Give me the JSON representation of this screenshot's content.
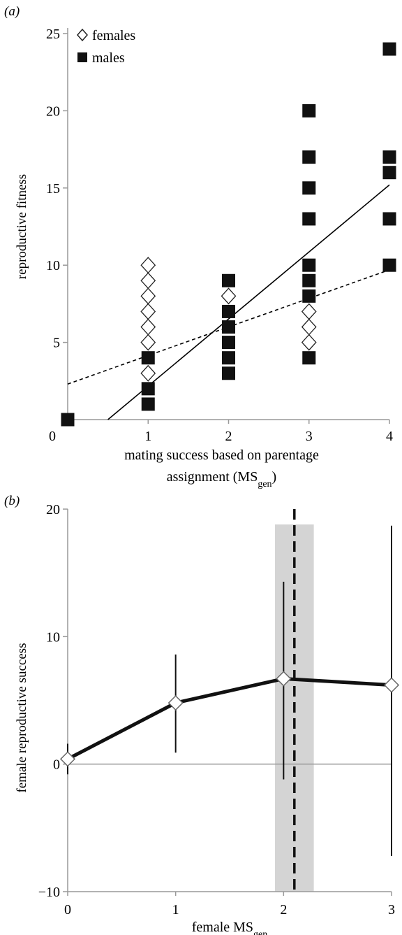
{
  "chart_data": [
    {
      "panel_label": "(a)",
      "type": "scatter",
      "xlabel_line1": "mating success based on parentage",
      "xlabel_line2_pre": "assignment (MS",
      "xlabel_line2_sub": "gen",
      "xlabel_line2_post": ")",
      "ylabel": "reproductive fitness",
      "xlim": [
        0,
        4
      ],
      "ylim": [
        0,
        25
      ],
      "xticks": [
        0,
        1,
        2,
        3,
        4
      ],
      "yticks": [
        5,
        10,
        15,
        20,
        25
      ],
      "legend": [
        "females",
        "males"
      ],
      "series": [
        {
          "name": "females",
          "marker": "open-diamond",
          "points": [
            [
              1,
              10
            ],
            [
              1,
              9
            ],
            [
              1,
              8
            ],
            [
              1,
              7
            ],
            [
              1,
              6
            ],
            [
              1,
              5
            ],
            [
              1,
              3
            ],
            [
              2,
              8
            ],
            [
              3,
              7
            ],
            [
              3,
              6
            ],
            [
              3,
              5
            ]
          ]
        },
        {
          "name": "males",
          "marker": "filled-square",
          "points": [
            [
              0,
              0
            ],
            [
              1,
              4
            ],
            [
              1,
              2
            ],
            [
              1,
              1
            ],
            [
              2,
              9
            ],
            [
              2,
              7
            ],
            [
              2,
              6
            ],
            [
              2,
              5
            ],
            [
              2,
              4
            ],
            [
              2,
              3
            ],
            [
              3,
              20
            ],
            [
              3,
              17
            ],
            [
              3,
              15
            ],
            [
              3,
              13
            ],
            [
              3,
              10
            ],
            [
              3,
              9
            ],
            [
              3,
              8
            ],
            [
              3,
              4
            ],
            [
              4,
              24
            ],
            [
              4,
              17
            ],
            [
              4,
              16
            ],
            [
              4,
              13
            ],
            [
              4,
              10
            ]
          ]
        }
      ],
      "fit_lines": [
        {
          "style": "solid",
          "x": [
            0.5,
            4
          ],
          "y": [
            0,
            15.2
          ]
        },
        {
          "style": "dashed",
          "x": [
            0,
            4
          ],
          "y": [
            2.3,
            9.7
          ]
        }
      ]
    },
    {
      "panel_label": "(b)",
      "type": "line",
      "xlabel_pre": "female MS",
      "xlabel_sub": "gen",
      "ylabel": "female reproductive success",
      "xlim": [
        0,
        3
      ],
      "ylim": [
        -10,
        20
      ],
      "xticks": [
        0,
        1,
        2,
        3
      ],
      "yticks": [
        -10,
        0,
        10,
        20
      ],
      "x": [
        0,
        1,
        2,
        3
      ],
      "y": [
        0.4,
        4.8,
        6.7,
        6.2
      ],
      "err_low": [
        -0.8,
        0.9,
        -1.2,
        -7.2
      ],
      "err_high": [
        1.6,
        8.6,
        14.3,
        18.7
      ],
      "vline": 2.1,
      "band": [
        1.92,
        2.28
      ]
    }
  ]
}
